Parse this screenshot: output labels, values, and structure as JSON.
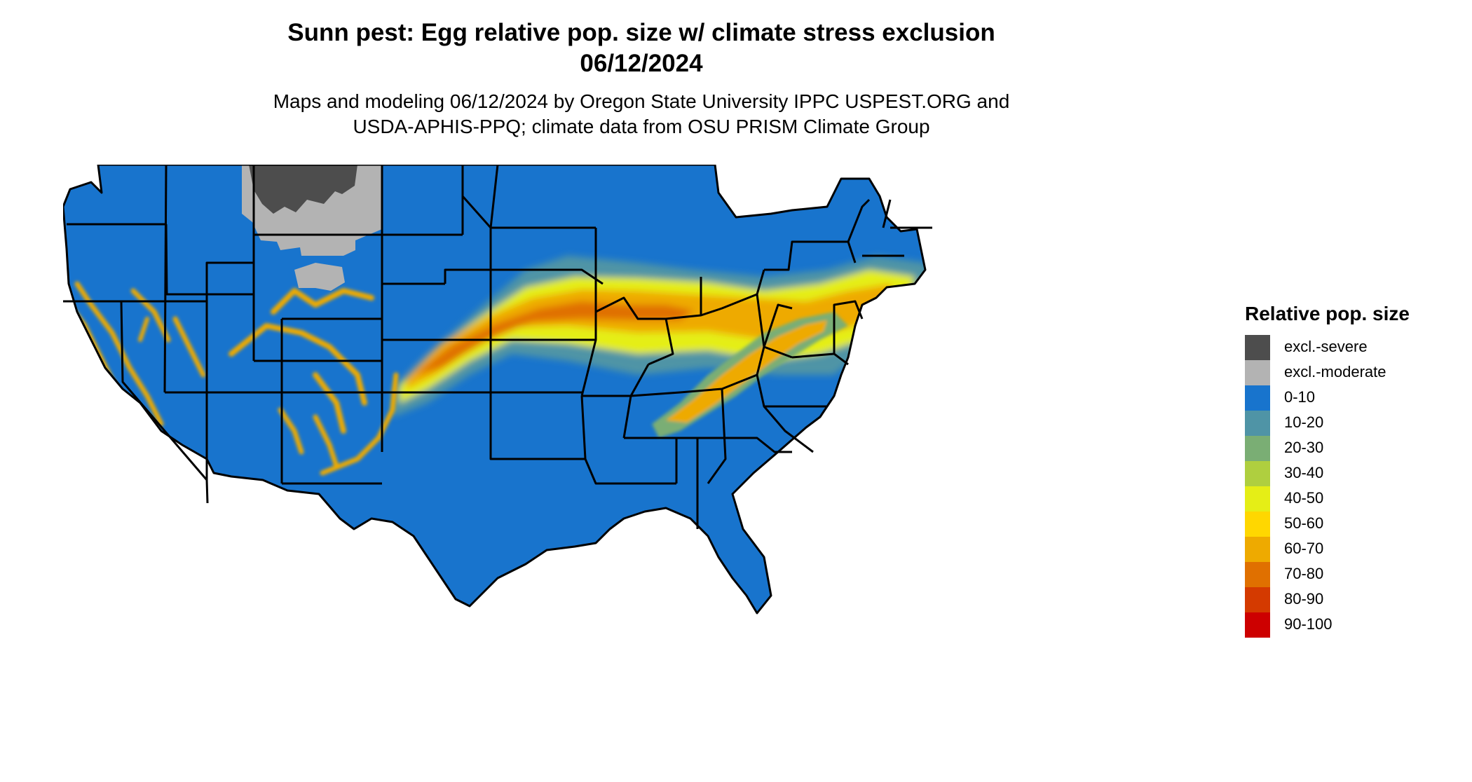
{
  "title_line1": "Sunn pest: Egg relative pop. size w/ climate stress exclusion",
  "title_line2": "06/12/2024",
  "subtitle_line1": "Maps and modeling 06/12/2024 by Oregon State University IPPC USPEST.ORG and",
  "subtitle_line2": "USDA-APHIS-PPQ; climate data from OSU PRISM Climate Group",
  "legend": {
    "title": "Relative pop. size",
    "items": [
      {
        "label": "excl.-severe",
        "color": "#4d4d4d"
      },
      {
        "label": "excl.-moderate",
        "color": "#b3b3b3"
      },
      {
        "label": "0-10",
        "color": "#1874cd"
      },
      {
        "label": "10-20",
        "color": "#4f94a6"
      },
      {
        "label": "20-30",
        "color": "#7aae74"
      },
      {
        "label": "30-40",
        "color": "#afcf3f"
      },
      {
        "label": "40-50",
        "color": "#e5ee16"
      },
      {
        "label": "50-60",
        "color": "#ffd700"
      },
      {
        "label": "60-70",
        "color": "#eeaa00"
      },
      {
        "label": "70-80",
        "color": "#e07000"
      },
      {
        "label": "80-90",
        "color": "#d43a00"
      },
      {
        "label": "90-100",
        "color": "#cd0000"
      }
    ]
  },
  "map": {
    "base_color": "#1874cd",
    "border_color": "#000000"
  }
}
